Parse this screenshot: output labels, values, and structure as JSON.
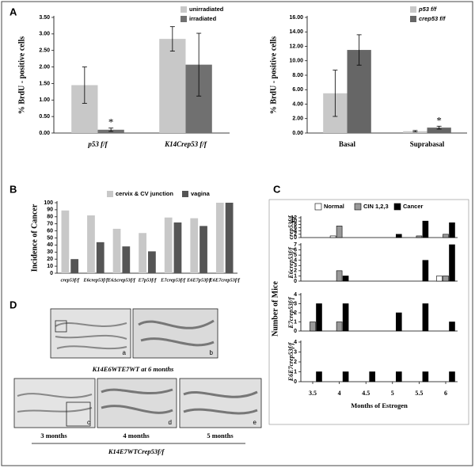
{
  "panel_labels": [
    "A",
    "B",
    "C",
    "D"
  ],
  "chart_data": [
    {
      "type": "bar",
      "ylabel": "% BrdU - positive cells",
      "categories": [
        "p53 f/f",
        "K14Crep53 f/f"
      ],
      "series": [
        {
          "name": "unirradiated",
          "color": "#c8c8c8",
          "values": [
            1.45,
            2.85
          ],
          "error": [
            0.55,
            0.37
          ]
        },
        {
          "name": "irradiated",
          "color": "#707070",
          "values": [
            0.1,
            2.07
          ],
          "error": [
            0.05,
            0.95
          ]
        }
      ],
      "ylim": [
        0,
        3.5
      ],
      "yticks": [
        {
          "value": 0,
          "label": "0.00"
        },
        {
          "value": 0.5,
          "label": "0.50"
        },
        {
          "value": 1,
          "label": "1.00"
        },
        {
          "value": 1.5,
          "label": "1.50"
        },
        {
          "value": 2,
          "label": "2.00"
        },
        {
          "value": 2.5,
          "label": "2.50"
        },
        {
          "value": 3,
          "label": "3.00"
        },
        {
          "value": 3.5,
          "label": "3.50"
        }
      ],
      "annotations": [
        "*"
      ]
    },
    {
      "type": "bar",
      "ylabel": "% BrdU - positive cells",
      "categories": [
        "Basal",
        "Suprabasal"
      ],
      "series": [
        {
          "name": "p53 f/f",
          "color": "#c8c8c8",
          "values": [
            5.5,
            0.25
          ],
          "error": [
            3.2,
            0.1
          ]
        },
        {
          "name": "crep53 f/f",
          "color": "#666666",
          "values": [
            11.5,
            0.75
          ],
          "error": [
            2.1,
            0.2
          ]
        }
      ],
      "ylim": [
        0,
        16
      ],
      "yticks": [
        {
          "value": 0,
          "label": "0.00"
        },
        {
          "value": 2,
          "label": "2.00"
        },
        {
          "value": 4,
          "label": "4.00"
        },
        {
          "value": 6,
          "label": "6.00"
        },
        {
          "value": 8,
          "label": "8.00"
        },
        {
          "value": 10,
          "label": "10.00"
        },
        {
          "value": 12,
          "label": "12.00"
        },
        {
          "value": 14,
          "label": "14.00"
        },
        {
          "value": 16,
          "label": "16.00"
        }
      ],
      "annotations": [
        "*"
      ]
    },
    {
      "type": "bar",
      "ylabel": "Incidence of Cancer",
      "categories": [
        "crep53f/f",
        "E6crep53f/f",
        "E6Δcrep53f/f",
        "E7p53f/f",
        "E7crep53f/f",
        "E6E7p53f/f",
        "E6E7crep53f/f"
      ],
      "series": [
        {
          "name": "cervix & CV junction",
          "color": "#c8c8c8",
          "values": [
            89,
            82,
            63,
            57,
            79,
            78,
            100
          ]
        },
        {
          "name": "vagina",
          "color": "#555555",
          "values": [
            20,
            44,
            38,
            31,
            72,
            67,
            100
          ]
        }
      ],
      "ylim": [
        0,
        100
      ],
      "yticks": [
        0,
        10,
        20,
        30,
        40,
        50,
        60,
        70,
        80,
        90,
        100
      ]
    },
    {
      "type": "bar",
      "ylabel": "Number of Mice",
      "row_label": "crep53f/f",
      "x": [
        3.5,
        4,
        4.5,
        5,
        5.5,
        6
      ],
      "series": [
        {
          "name": "Normal",
          "color": "#ffffff",
          "values": [
            0,
            1,
            0,
            0,
            0,
            0
          ]
        },
        {
          "name": "CIN 1,2,3",
          "color": "#999999",
          "values": [
            0,
            7,
            0,
            0,
            1,
            2
          ]
        },
        {
          "name": "Cancer",
          "color": "#000000",
          "values": [
            0,
            0,
            0,
            2,
            10,
            9
          ]
        }
      ],
      "ylim": [
        0,
        12
      ],
      "yticks": [
        0,
        2,
        4,
        6,
        8,
        10,
        12
      ]
    },
    {
      "type": "bar",
      "row_label": "E6crep53f/f",
      "x": [
        3.5,
        4,
        4.5,
        5,
        5.5,
        6
      ],
      "series": [
        {
          "color": "#ffffff",
          "values": [
            0,
            0,
            0,
            0,
            0,
            1
          ]
        },
        {
          "color": "#999999",
          "values": [
            0,
            2,
            0,
            0,
            0,
            1
          ]
        },
        {
          "color": "#000000",
          "values": [
            0,
            1,
            0,
            0,
            4,
            7
          ]
        }
      ],
      "ylim": [
        0,
        7
      ],
      "yticks": [
        0,
        1,
        2,
        3,
        4,
        5,
        6,
        7
      ]
    },
    {
      "type": "bar",
      "row_label": "E7crep53f/f",
      "x": [
        3.5,
        4,
        4.5,
        5,
        5.5,
        6
      ],
      "series": [
        {
          "color": "#ffffff",
          "values": [
            0,
            0,
            0,
            0,
            0,
            0
          ]
        },
        {
          "color": "#999999",
          "values": [
            1,
            1,
            0,
            0,
            0,
            0
          ]
        },
        {
          "color": "#000000",
          "values": [
            3,
            3,
            0,
            2,
            3,
            1
          ]
        }
      ],
      "ylim": [
        0,
        4
      ],
      "yticks": [
        0,
        1,
        2,
        3,
        4
      ]
    },
    {
      "type": "bar",
      "row_label": "E6E7crep53f/f",
      "xlabel": "Months of Estrogen",
      "x": [
        3.5,
        4,
        4.5,
        5,
        5.5,
        6
      ],
      "series": [
        {
          "color": "#ffffff",
          "values": [
            0,
            0,
            0,
            0,
            0,
            0
          ]
        },
        {
          "color": "#999999",
          "values": [
            0,
            0,
            0,
            0,
            0,
            0
          ]
        },
        {
          "color": "#000000",
          "values": [
            1,
            1,
            1,
            1,
            1,
            1
          ]
        }
      ],
      "ylim": [
        0,
        4
      ],
      "yticks": [
        0,
        1,
        2,
        3,
        4
      ],
      "xticks": [
        3.5,
        4,
        4.5,
        5,
        5.5,
        6
      ]
    }
  ],
  "panel_d": {
    "image_labels": [
      "a",
      "b",
      "c",
      "d",
      "e"
    ],
    "captions": [
      "K14E6WTE7WT at 6 months",
      "3 months",
      "4 months",
      "5 months",
      "K14E7WTCrep53f/f"
    ]
  }
}
